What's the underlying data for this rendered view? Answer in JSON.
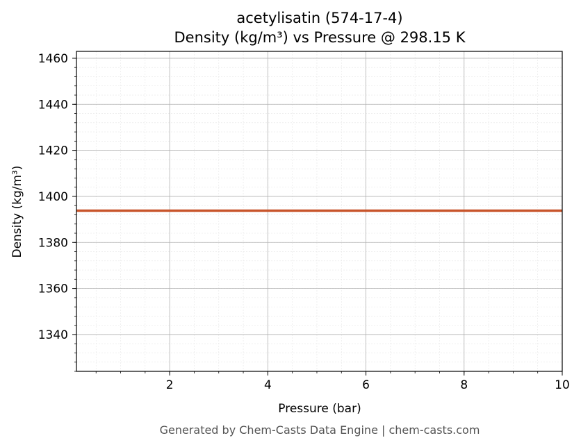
{
  "chart_data": {
    "type": "line",
    "title": "acetylisatin (574-17-4)",
    "subtitle": "Density (kg/m³) vs Pressure @ 298.15 K",
    "xlabel": "Pressure (bar)",
    "ylabel": "Density (kg/m³)",
    "xlim": [
      0.1,
      10
    ],
    "ylim": [
      1324,
      1463
    ],
    "x_ticks": [
      2,
      4,
      6,
      8,
      10
    ],
    "y_ticks": [
      1340,
      1360,
      1380,
      1400,
      1420,
      1440,
      1460
    ],
    "grid": true,
    "series": [
      {
        "color": "#c8552b",
        "x": [
          0.1,
          1,
          2,
          3,
          4,
          5,
          6,
          7,
          8,
          9,
          10
        ],
        "y": [
          1393.8,
          1393.8,
          1393.8,
          1393.8,
          1393.8,
          1393.8,
          1393.8,
          1393.8,
          1393.8,
          1393.8,
          1393.8
        ]
      }
    ]
  },
  "footer": "Generated by Chem-Casts Data Engine | chem-casts.com"
}
